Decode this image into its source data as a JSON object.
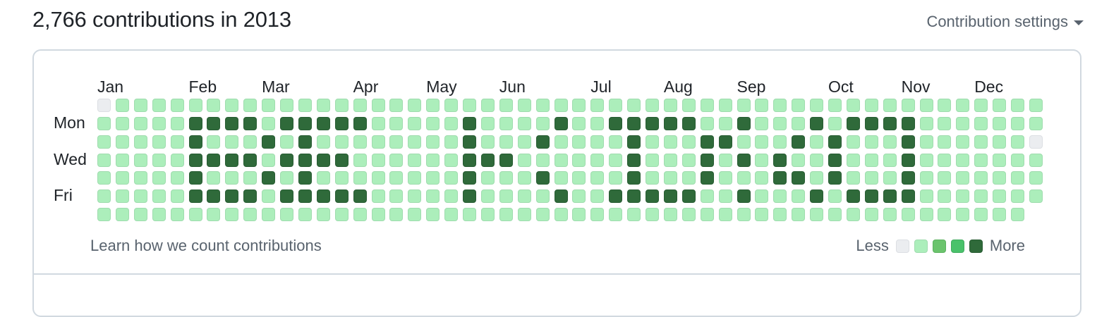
{
  "header": {
    "title": "2,766 contributions in 2013",
    "settings_label": "Contribution settings"
  },
  "calendar": {
    "months": [
      "Jan",
      "Feb",
      "Mar",
      "Apr",
      "May",
      "Jun",
      "Jul",
      "Aug",
      "Sep",
      "Oct",
      "Nov",
      "Dec"
    ],
    "month_start_weeks": [
      0,
      5,
      9,
      14,
      18,
      22,
      27,
      31,
      35,
      40,
      44,
      48
    ],
    "day_labels": [
      "Mon",
      "Wed",
      "Fri"
    ],
    "day_label_rows": [
      1,
      3,
      5
    ],
    "levels": [
      "0111111111111111111111111111111111111111111111111111",
      "1111144441444441111141111411444441141114144441111111",
      "1111141114141111111141114111141114411141411141111110",
      "1111144441444411111144411111141114141411411141111111",
      "1111141114141111111141114111141114111441411141111111",
      "1111144441444441111141111411444441141114144441111111",
      "111111111111111111111111111111111111111111111111111"
    ],
    "colors": [
      "#ebedf0",
      "#aceebb",
      "#6bc46d",
      "#4ac26b",
      "#2f6a3a"
    ],
    "border_colors": [
      "#dcdfe3",
      "#9fdcae",
      "#5db260",
      "#41ab5f",
      "#285c33"
    ]
  },
  "footer": {
    "learn_link": "Learn how we count contributions",
    "legend_less": "Less",
    "legend_more": "More",
    "legend_levels": [
      0,
      1,
      2,
      3,
      4
    ]
  }
}
